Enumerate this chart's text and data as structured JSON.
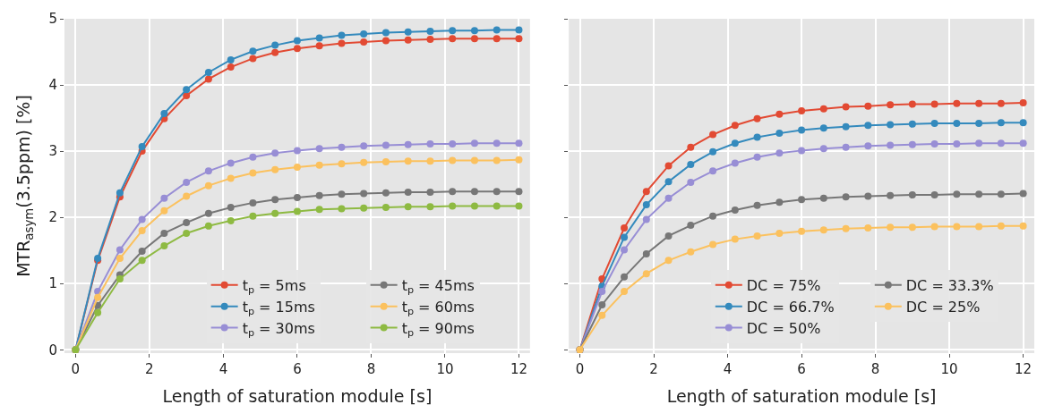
{
  "chart_data": [
    {
      "type": "line",
      "xlabel": "Length of saturation module [s]",
      "ylabel": "MTR$_{asym}$(3.5ppm) [%]",
      "x": [
        0,
        0.6,
        1.2,
        1.8,
        2.4,
        3.0,
        3.6,
        4.2,
        4.8,
        5.4,
        6.0,
        6.6,
        7.2,
        7.8,
        8.4,
        9.0,
        9.6,
        10.2,
        10.8,
        11.4,
        12.0
      ],
      "xlim": [
        -0.3,
        12.3
      ],
      "xticks": [
        0,
        2,
        4,
        6,
        8,
        10,
        12
      ],
      "ylim": [
        -0.05,
        5
      ],
      "yticks": [
        0,
        1,
        2,
        3,
        4,
        5
      ],
      "grid": true,
      "legend": "bottom right",
      "marker": "circle",
      "series": [
        {
          "name": "t$_{p}$ = 5ms",
          "color": "#e24a33",
          "values": [
            0,
            1.35,
            2.31,
            3.0,
            3.49,
            3.84,
            4.09,
            4.27,
            4.4,
            4.49,
            4.55,
            4.59,
            4.63,
            4.65,
            4.67,
            4.68,
            4.69,
            4.7,
            4.7,
            4.7,
            4.7
          ]
        },
        {
          "name": "t$_{p}$ = 15ms",
          "color": "#348abd",
          "values": [
            0,
            1.38,
            2.37,
            3.07,
            3.57,
            3.93,
            4.19,
            4.38,
            4.51,
            4.6,
            4.67,
            4.71,
            4.75,
            4.77,
            4.79,
            4.8,
            4.81,
            4.82,
            4.82,
            4.83,
            4.83
          ]
        },
        {
          "name": "t$_{p}$ = 30ms",
          "color": "#988ed5",
          "values": [
            0,
            0.88,
            1.51,
            1.97,
            2.29,
            2.53,
            2.7,
            2.82,
            2.91,
            2.97,
            3.01,
            3.04,
            3.06,
            3.08,
            3.09,
            3.1,
            3.11,
            3.11,
            3.12,
            3.12,
            3.12
          ]
        },
        {
          "name": "t$_{p}$ = 45ms",
          "color": "#777777",
          "values": [
            0,
            0.67,
            1.13,
            1.49,
            1.76,
            1.92,
            2.06,
            2.15,
            2.22,
            2.27,
            2.3,
            2.33,
            2.35,
            2.36,
            2.37,
            2.38,
            2.38,
            2.39,
            2.39,
            2.39,
            2.39
          ]
        },
        {
          "name": "t$_{p}$ = 60ms",
          "color": "#fbc15e",
          "values": [
            0,
            0.79,
            1.38,
            1.8,
            2.1,
            2.32,
            2.48,
            2.59,
            2.67,
            2.72,
            2.76,
            2.79,
            2.81,
            2.83,
            2.84,
            2.85,
            2.85,
            2.86,
            2.86,
            2.86,
            2.87
          ]
        },
        {
          "name": "t$_{p}$ = 90ms",
          "color": "#8eba42",
          "values": [
            0,
            0.56,
            1.07,
            1.35,
            1.57,
            1.76,
            1.87,
            1.95,
            2.02,
            2.06,
            2.09,
            2.12,
            2.13,
            2.14,
            2.15,
            2.16,
            2.16,
            2.17,
            2.17,
            2.17,
            2.17
          ]
        }
      ]
    },
    {
      "type": "line",
      "xlabel": "Length of saturation module [s]",
      "x": [
        0,
        0.6,
        1.2,
        1.8,
        2.4,
        3.0,
        3.6,
        4.2,
        4.8,
        5.4,
        6.0,
        6.6,
        7.2,
        7.8,
        8.4,
        9.0,
        9.6,
        10.2,
        10.8,
        11.4,
        12.0
      ],
      "xlim": [
        -0.3,
        12.3
      ],
      "xticks": [
        0,
        2,
        4,
        6,
        8,
        10,
        12
      ],
      "ylim": [
        -0.05,
        5
      ],
      "yticks": [
        0,
        1,
        2,
        3,
        4,
        5
      ],
      "tick_labels": "x",
      "grid": true,
      "legend": "bottom right",
      "marker": "circle",
      "series": [
        {
          "name": "DC = 75%",
          "color": "#e24a33",
          "values": [
            0,
            1.07,
            1.84,
            2.39,
            2.78,
            3.06,
            3.25,
            3.39,
            3.49,
            3.56,
            3.61,
            3.64,
            3.67,
            3.68,
            3.7,
            3.71,
            3.71,
            3.72,
            3.72,
            3.72,
            3.73
          ]
        },
        {
          "name": "DC = 66.7%",
          "color": "#348abd",
          "values": [
            0,
            0.96,
            1.7,
            2.19,
            2.54,
            2.8,
            2.99,
            3.12,
            3.21,
            3.27,
            3.32,
            3.35,
            3.37,
            3.39,
            3.4,
            3.41,
            3.42,
            3.42,
            3.42,
            3.43,
            3.43
          ]
        },
        {
          "name": "DC = 50%",
          "color": "#988ed5",
          "values": [
            0,
            0.88,
            1.51,
            1.97,
            2.29,
            2.53,
            2.7,
            2.82,
            2.91,
            2.97,
            3.01,
            3.04,
            3.06,
            3.08,
            3.09,
            3.1,
            3.11,
            3.11,
            3.12,
            3.12,
            3.12
          ]
        },
        {
          "name": "DC = 33.3%",
          "color": "#777777",
          "values": [
            0,
            0.68,
            1.1,
            1.45,
            1.72,
            1.88,
            2.02,
            2.11,
            2.18,
            2.23,
            2.27,
            2.29,
            2.31,
            2.32,
            2.33,
            2.34,
            2.34,
            2.35,
            2.35,
            2.35,
            2.36
          ]
        },
        {
          "name": "DC = 25%",
          "color": "#fbc15e",
          "values": [
            0,
            0.52,
            0.88,
            1.15,
            1.35,
            1.48,
            1.59,
            1.67,
            1.72,
            1.76,
            1.79,
            1.81,
            1.83,
            1.84,
            1.85,
            1.85,
            1.86,
            1.86,
            1.86,
            1.87,
            1.87
          ]
        }
      ]
    }
  ]
}
